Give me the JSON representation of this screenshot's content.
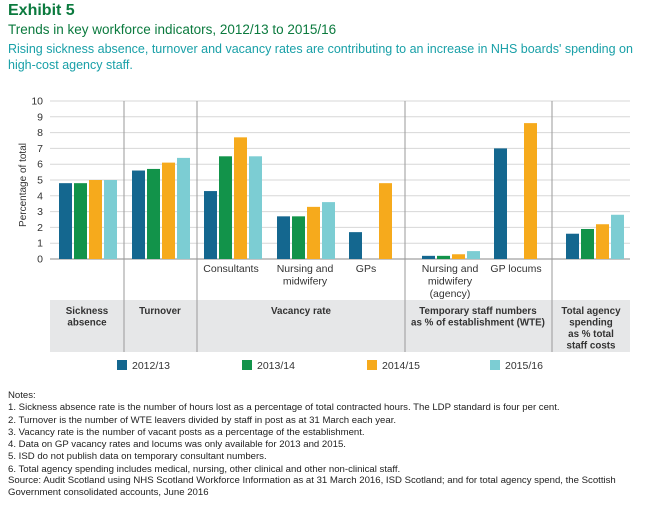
{
  "header": {
    "exhibit": "Exhibit 5",
    "title": "Trends in key workforce indicators, 2012/13 to 2015/16",
    "subtitle": "Rising sickness absence, turnover and vacancy rates are contributing to an increase in NHS boards' spending on high-cost agency staff."
  },
  "chart_data": {
    "type": "bar",
    "ylabel": "Percentage of total",
    "ylim": [
      0,
      10
    ],
    "yticks": [
      0,
      1,
      2,
      3,
      4,
      5,
      6,
      7,
      8,
      9,
      10
    ],
    "grid": true,
    "series_names": [
      "2012/13",
      "2013/14",
      "2014/15",
      "2015/16"
    ],
    "colors": [
      "#14678f",
      "#12934a",
      "#f6aa1c",
      "#7ccdd3"
    ],
    "groups": [
      {
        "label": "",
        "values": [
          4.8,
          4.8,
          5.0,
          5.0
        ]
      },
      {
        "label": "",
        "values": [
          5.6,
          5.7,
          6.1,
          6.4
        ]
      },
      {
        "label": "Consultants",
        "values": [
          4.3,
          6.5,
          7.7,
          6.5
        ]
      },
      {
        "label": "Nursing and midwifery",
        "values": [
          2.7,
          2.7,
          3.3,
          3.6
        ]
      },
      {
        "label": "GPs",
        "values": [
          1.7,
          null,
          4.8,
          null
        ]
      },
      {
        "label": "Nursing and midwifery (agency)",
        "values": [
          0.2,
          0.2,
          0.3,
          0.5
        ]
      },
      {
        "label": "GP locums",
        "values": [
          7.0,
          null,
          8.6,
          null
        ]
      },
      {
        "label": "",
        "values": [
          1.6,
          1.9,
          2.2,
          2.8
        ]
      }
    ],
    "categories": [
      "Sickness absence",
      "Turnover",
      "Vacancy rate",
      "Temporary staff numbers as % of establishment (WTE)",
      "Total agency spending as % total staff costs"
    ],
    "category_lines": {
      "sickness": [
        "Sickness",
        "absence"
      ],
      "turnover": [
        "Turnover"
      ],
      "vacancy": [
        "Vacancy rate"
      ],
      "temporary": [
        "Temporary staff numbers",
        "as % of establishment (WTE)"
      ],
      "agency": [
        "Total agency",
        "spending",
        "as % total",
        "staff costs"
      ]
    },
    "group_label_lines": {
      "consultants": [
        "Consultants"
      ],
      "nursing": [
        "Nursing and",
        "midwifery"
      ],
      "gps": [
        "GPs"
      ],
      "nursing_agency": [
        "Nursing and",
        "midwifery",
        "(agency)"
      ],
      "gp_locums": [
        "GP locums"
      ]
    }
  },
  "notes": {
    "heading": "Notes:",
    "items": [
      "1. Sickness absence rate is the number of hours lost as a percentage of total contracted hours. The LDP standard is four per cent.",
      "2. Turnover is the number of WTE leavers divided by staff in post as at 31 March each year.",
      "3. Vacancy rate is the number of vacant posts as a percentage of the establishment.",
      "4. Data on GP vacancy rates and locums was only available for 2013 and 2015.",
      "5. ISD do not publish data on temporary consultant numbers.",
      "6. Total agency spending includes medical, nursing, other clinical and other non-clinical staff."
    ]
  },
  "source": {
    "text": "Source: Audit Scotland using NHS Scotland Workforce Information as at 31 March 2016, ISD Scotland; and for total agency spend, the Scottish Government consolidated accounts, June 2016"
  }
}
